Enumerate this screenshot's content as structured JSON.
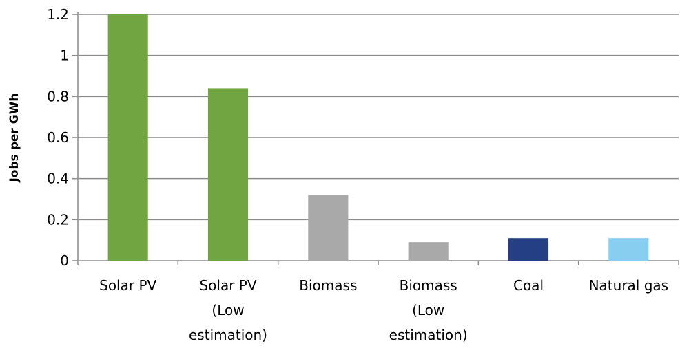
{
  "chart_data": {
    "type": "bar",
    "ylabel": "Jobs per GWh",
    "categories": [
      "Solar PV",
      "Solar PV (Low estimation)",
      "Biomass",
      "Biomass (Low estimation)",
      "Coal",
      "Natural gas"
    ],
    "values": [
      1.2,
      0.84,
      0.32,
      0.09,
      0.11,
      0.11
    ],
    "colors": [
      "#70a542",
      "#70a542",
      "#a9a9a9",
      "#a9a9a9",
      "#253f85",
      "#87cef0"
    ],
    "ylim": [
      0,
      1.2
    ],
    "yticks": [
      0,
      0.2,
      0.4,
      0.6,
      0.8,
      1,
      1.2
    ],
    "grid": true
  }
}
